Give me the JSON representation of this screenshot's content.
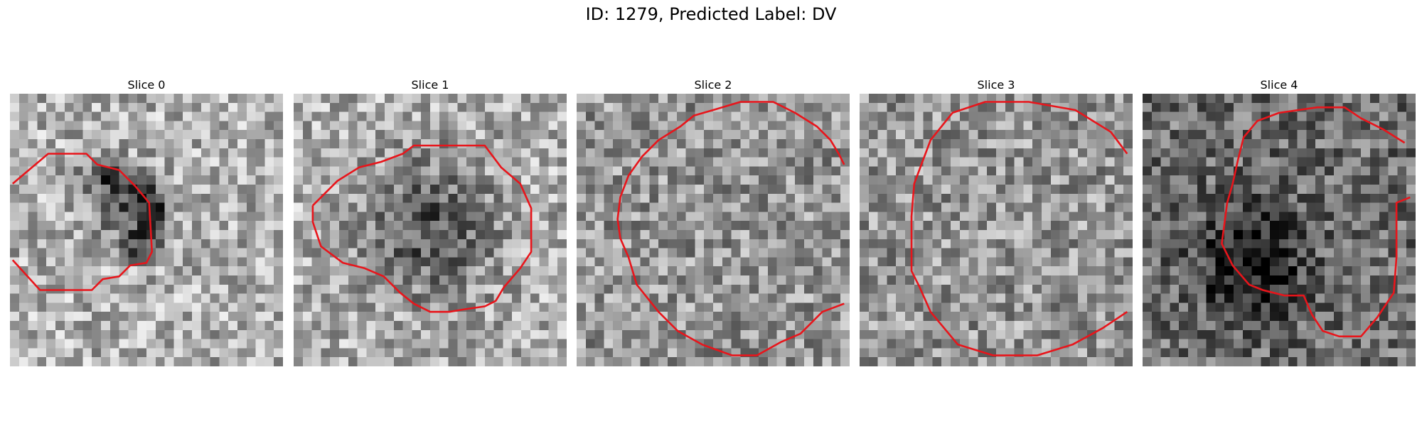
{
  "figure": {
    "title": "ID: 1279, Predicted Label: DV",
    "grid_size": 30,
    "contour_color": "#e8151b",
    "panels": [
      {
        "title": "Slice 0",
        "tone": "light",
        "dark_blob": [
          [
            0.44,
            0.42,
            0.14,
            0.1
          ],
          [
            0.38,
            0.31,
            0.1,
            0.06
          ],
          [
            0.45,
            0.56,
            0.06,
            0.05
          ],
          [
            0.52,
            0.47,
            0.05,
            0.12
          ]
        ],
        "contour": [
          [
            [
              0.01,
              0.33
            ],
            [
              0.14,
              0.22
            ],
            [
              0.28,
              0.22
            ],
            [
              0.32,
              0.26
            ],
            [
              0.4,
              0.28
            ],
            [
              0.46,
              0.34
            ],
            [
              0.51,
              0.4
            ],
            [
              0.52,
              0.58
            ],
            [
              0.5,
              0.62
            ],
            [
              0.44,
              0.63
            ],
            [
              0.4,
              0.67
            ],
            [
              0.34,
              0.68
            ],
            [
              0.3,
              0.72
            ],
            [
              0.11,
              0.72
            ],
            [
              0.01,
              0.61
            ]
          ]
        ]
      },
      {
        "title": "Slice 1",
        "tone": "light",
        "dark_blob": [
          [
            0.5,
            0.5,
            0.24,
            0.24
          ]
        ],
        "contour": [
          [
            [
              0.07,
              0.41
            ],
            [
              0.16,
              0.32
            ],
            [
              0.24,
              0.27
            ],
            [
              0.32,
              0.25
            ],
            [
              0.4,
              0.22
            ],
            [
              0.44,
              0.19
            ],
            [
              0.7,
              0.19
            ],
            [
              0.76,
              0.27
            ],
            [
              0.83,
              0.33
            ],
            [
              0.87,
              0.42
            ],
            [
              0.87,
              0.58
            ],
            [
              0.83,
              0.64
            ],
            [
              0.77,
              0.71
            ],
            [
              0.74,
              0.76
            ],
            [
              0.7,
              0.78
            ],
            [
              0.63,
              0.79
            ],
            [
              0.57,
              0.8
            ],
            [
              0.5,
              0.8
            ],
            [
              0.44,
              0.77
            ],
            [
              0.39,
              0.73
            ],
            [
              0.33,
              0.67
            ],
            [
              0.26,
              0.64
            ],
            [
              0.18,
              0.62
            ],
            [
              0.1,
              0.56
            ],
            [
              0.07,
              0.47
            ],
            [
              0.07,
              0.41
            ]
          ]
        ]
      },
      {
        "title": "Slice 2",
        "tone": "medium",
        "dark_blob": [],
        "contour": [
          [
            [
              0.98,
              0.26
            ],
            [
              0.96,
              0.22
            ],
            [
              0.93,
              0.17
            ],
            [
              0.88,
              0.12
            ],
            [
              0.8,
              0.07
            ],
            [
              0.72,
              0.03
            ],
            [
              0.6,
              0.03
            ],
            [
              0.5,
              0.06
            ],
            [
              0.43,
              0.08
            ],
            [
              0.38,
              0.12
            ],
            [
              0.3,
              0.17
            ],
            [
              0.24,
              0.23
            ],
            [
              0.19,
              0.3
            ],
            [
              0.16,
              0.38
            ],
            [
              0.15,
              0.46
            ],
            [
              0.16,
              0.53
            ],
            [
              0.19,
              0.6
            ],
            [
              0.22,
              0.7
            ],
            [
              0.3,
              0.8
            ],
            [
              0.37,
              0.87
            ],
            [
              0.46,
              0.92
            ],
            [
              0.57,
              0.96
            ],
            [
              0.66,
              0.96
            ],
            [
              0.75,
              0.91
            ],
            [
              0.82,
              0.88
            ],
            [
              0.9,
              0.8
            ],
            [
              0.98,
              0.77
            ]
          ]
        ]
      },
      {
        "title": "Slice 3",
        "tone": "medium",
        "dark_blob": [],
        "contour": [
          [
            [
              0.98,
              0.22
            ],
            [
              0.92,
              0.14
            ],
            [
              0.79,
              0.06
            ],
            [
              0.62,
              0.03
            ],
            [
              0.46,
              0.03
            ],
            [
              0.34,
              0.07
            ],
            [
              0.26,
              0.17
            ],
            [
              0.23,
              0.25
            ],
            [
              0.2,
              0.33
            ],
            [
              0.19,
              0.45
            ],
            [
              0.19,
              0.65
            ],
            [
              0.22,
              0.71
            ],
            [
              0.26,
              0.8
            ],
            [
              0.36,
              0.92
            ],
            [
              0.49,
              0.96
            ],
            [
              0.65,
              0.96
            ],
            [
              0.78,
              0.92
            ],
            [
              0.89,
              0.86
            ],
            [
              0.98,
              0.8
            ]
          ]
        ]
      },
      {
        "title": "Slice 4",
        "tone": "dark",
        "dark_blob": [
          [
            0.4,
            0.62,
            0.2,
            0.2
          ]
        ],
        "contour": [
          [
            [
              0.96,
              0.18
            ],
            [
              0.88,
              0.13
            ],
            [
              0.8,
              0.09
            ],
            [
              0.74,
              0.05
            ],
            [
              0.64,
              0.05
            ],
            [
              0.5,
              0.07
            ],
            [
              0.42,
              0.1
            ],
            [
              0.37,
              0.16
            ],
            [
              0.35,
              0.24
            ],
            [
              0.33,
              0.33
            ],
            [
              0.31,
              0.4
            ],
            [
              0.29,
              0.55
            ],
            [
              0.33,
              0.63
            ],
            [
              0.39,
              0.7
            ],
            [
              0.44,
              0.72
            ],
            [
              0.52,
              0.74
            ],
            [
              0.59,
              0.74
            ],
            [
              0.62,
              0.81
            ],
            [
              0.66,
              0.87
            ],
            [
              0.72,
              0.89
            ],
            [
              0.8,
              0.89
            ],
            [
              0.86,
              0.82
            ],
            [
              0.92,
              0.73
            ],
            [
              0.93,
              0.6
            ],
            [
              0.93,
              0.46
            ],
            [
              0.93,
              0.4
            ],
            [
              0.98,
              0.38
            ]
          ]
        ]
      }
    ]
  }
}
